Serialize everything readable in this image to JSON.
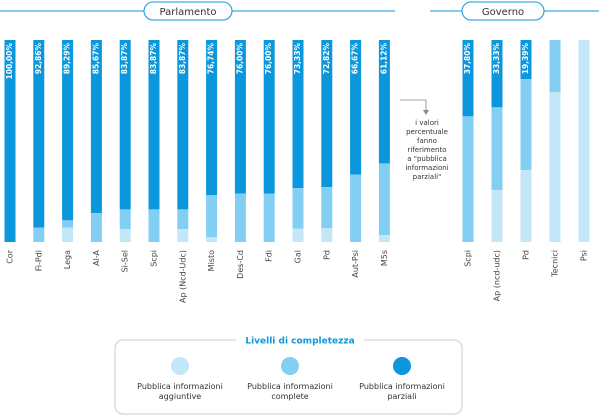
{
  "chart_data": {
    "type": "bar",
    "stacked": true,
    "legend_title": "Livelli di completezza",
    "series": [
      {
        "name": "Pubblica informazioni aggiuntive",
        "color": "#c3e6f9"
      },
      {
        "name": "Pubblica informazioni complete",
        "color": "#83cef3"
      },
      {
        "name": "Pubblica informazioni parziali",
        "color": "#0c97dd"
      }
    ],
    "ylim": [
      0,
      100
    ],
    "annotation": [
      "i valori",
      "percentuale",
      "fanno",
      "riferimento",
      "a \"pubblica",
      "informazioni",
      "parziali\""
    ],
    "panels": [
      {
        "title": "Parlamento",
        "categories": [
          "Cor",
          "Fi-Pdl",
          "Lega",
          "Al-A",
          "Si-Sel",
          "Scpi",
          "Ap (Ncd-Udc)",
          "Misto",
          "Des-Cd",
          "Fdi",
          "Gal",
          "Pd",
          "Aut-Psi",
          "M5s"
        ],
        "series": [
          {
            "values": [
              0,
              0,
              7.14,
              0,
              6.45,
              0,
              6.45,
              2.33,
              0,
              0,
              6.67,
              6.79,
              0,
              3.38
            ]
          },
          {
            "values": [
              0,
              7.14,
              3.57,
              14.33,
              9.68,
              16.13,
              9.68,
              20.93,
              24,
              24,
              20,
              20.39,
              33.33,
              35.5
            ]
          },
          {
            "values": [
              100,
              92.86,
              89.29,
              85.67,
              83.87,
              83.87,
              83.87,
              76.74,
              76,
              76,
              73.33,
              72.82,
              66.67,
              61.12
            ],
            "value_labels": [
              "100,00%",
              "92,86%",
              "89,29%",
              "85,67%",
              "83,87%",
              "83,87%",
              "83,87%",
              "76,74%",
              "76,00%",
              "76,00%",
              "73,33%",
              "72,82%",
              "66,67%",
              "61,12%"
            ]
          }
        ]
      },
      {
        "title": "Governo",
        "categories": [
          "Scpi",
          "Ap (ncd-udc)",
          "Pd",
          "Tecnici",
          "Psi"
        ],
        "series": [
          {
            "values": [
              0,
              25.64,
              35.55,
              74.2,
              100
            ]
          },
          {
            "values": [
              62.2,
              41.03,
              45.06,
              25.8,
              0
            ]
          },
          {
            "values": [
              37.8,
              33.33,
              19.39,
              0,
              0
            ],
            "value_labels": [
              "37,80%",
              "33,33%",
              "19,39%",
              null,
              null
            ]
          }
        ]
      }
    ]
  }
}
